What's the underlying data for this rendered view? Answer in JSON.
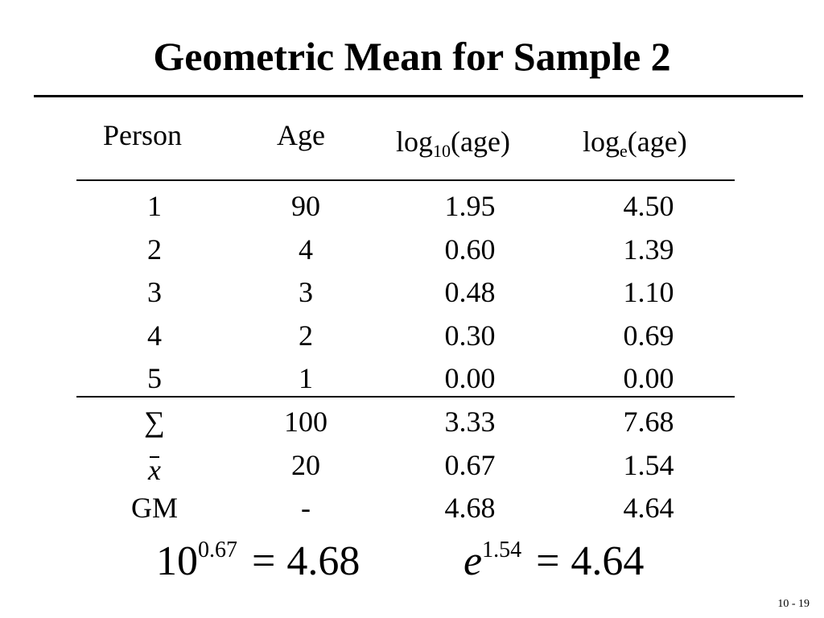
{
  "title": "Geometric Mean for Sample 2",
  "table": {
    "headers": {
      "person": "Person",
      "age": "Age",
      "log10_base": "log",
      "log10_sub": "10",
      "log10_tail": "(age)",
      "loge_base": "log",
      "loge_sub": "e",
      "loge_tail": "(age)"
    },
    "rows": [
      [
        "1",
        "90",
        "1.95",
        "4.50"
      ],
      [
        "2",
        "4",
        "0.60",
        "1.39"
      ],
      [
        "3",
        "3",
        "0.48",
        "1.10"
      ],
      [
        "4",
        "2",
        "0.30",
        "0.69"
      ],
      [
        "5",
        "1",
        "0.00",
        "0.00"
      ]
    ],
    "summary": [
      [
        "∑",
        "100",
        "3.33",
        "7.68"
      ],
      [
        "x",
        "20",
        "0.67",
        "1.54"
      ],
      [
        "GM",
        "-",
        "4.68",
        "4.64"
      ]
    ]
  },
  "formulas": {
    "left": {
      "base": "10",
      "exponent": "0.67",
      "operator": "=",
      "result": "4.68"
    },
    "right": {
      "base": "e",
      "exponent": "1.54",
      "operator": "=",
      "result": "4.64"
    }
  },
  "slide_number": "10 - 19"
}
